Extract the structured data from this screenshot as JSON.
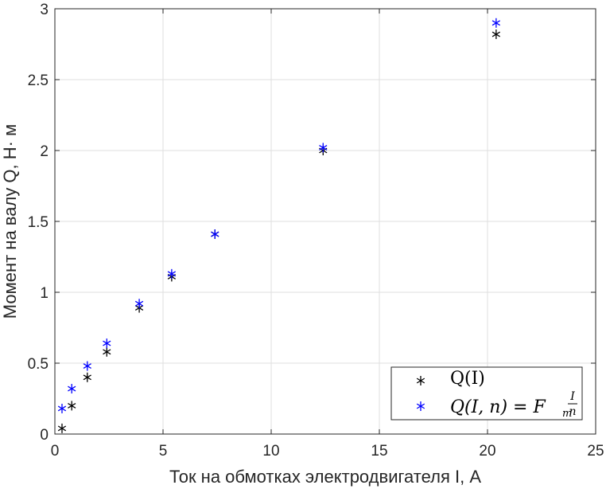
{
  "chart_data": {
    "type": "scatter",
    "title": "",
    "xlabel": "Ток на обмотках электродвигателя I, А",
    "ylabel": "Момент на валу Q, Н· м",
    "xlim": [
      0,
      25
    ],
    "ylim": [
      0,
      3
    ],
    "xticks": [
      0,
      5,
      10,
      15,
      20,
      25
    ],
    "yticks": [
      0,
      0.5,
      1,
      1.5,
      2,
      2.5,
      3
    ],
    "grid": true,
    "legend_position": "bottom-right",
    "marker": "*",
    "series": [
      {
        "name": "Q(I)",
        "color": "#000000",
        "points": [
          {
            "x": 0.33,
            "y": 0.04
          },
          {
            "x": 0.78,
            "y": 0.2
          },
          {
            "x": 1.5,
            "y": 0.4
          },
          {
            "x": 2.4,
            "y": 0.58
          },
          {
            "x": 3.9,
            "y": 0.89
          },
          {
            "x": 5.4,
            "y": 1.11
          },
          {
            "x": 7.4,
            "y": 1.41
          },
          {
            "x": 12.4,
            "y": 2.0
          },
          {
            "x": 20.4,
            "y": 2.82
          }
        ]
      },
      {
        "name": "Q(I, n) = F_m I/n",
        "color": "#0000ff",
        "points": [
          {
            "x": 0.33,
            "y": 0.18
          },
          {
            "x": 0.78,
            "y": 0.32
          },
          {
            "x": 1.5,
            "y": 0.48
          },
          {
            "x": 2.4,
            "y": 0.64
          },
          {
            "x": 3.9,
            "y": 0.92
          },
          {
            "x": 5.4,
            "y": 1.13
          },
          {
            "x": 7.4,
            "y": 1.41
          },
          {
            "x": 12.4,
            "y": 2.02
          },
          {
            "x": 20.4,
            "y": 2.9
          }
        ]
      }
    ],
    "legend": {
      "entry1_text": "Q(I)",
      "entry2_lhs": "Q(I, n) = F",
      "entry2_sub": "m",
      "entry2_num": "I",
      "entry2_den": "n"
    }
  }
}
